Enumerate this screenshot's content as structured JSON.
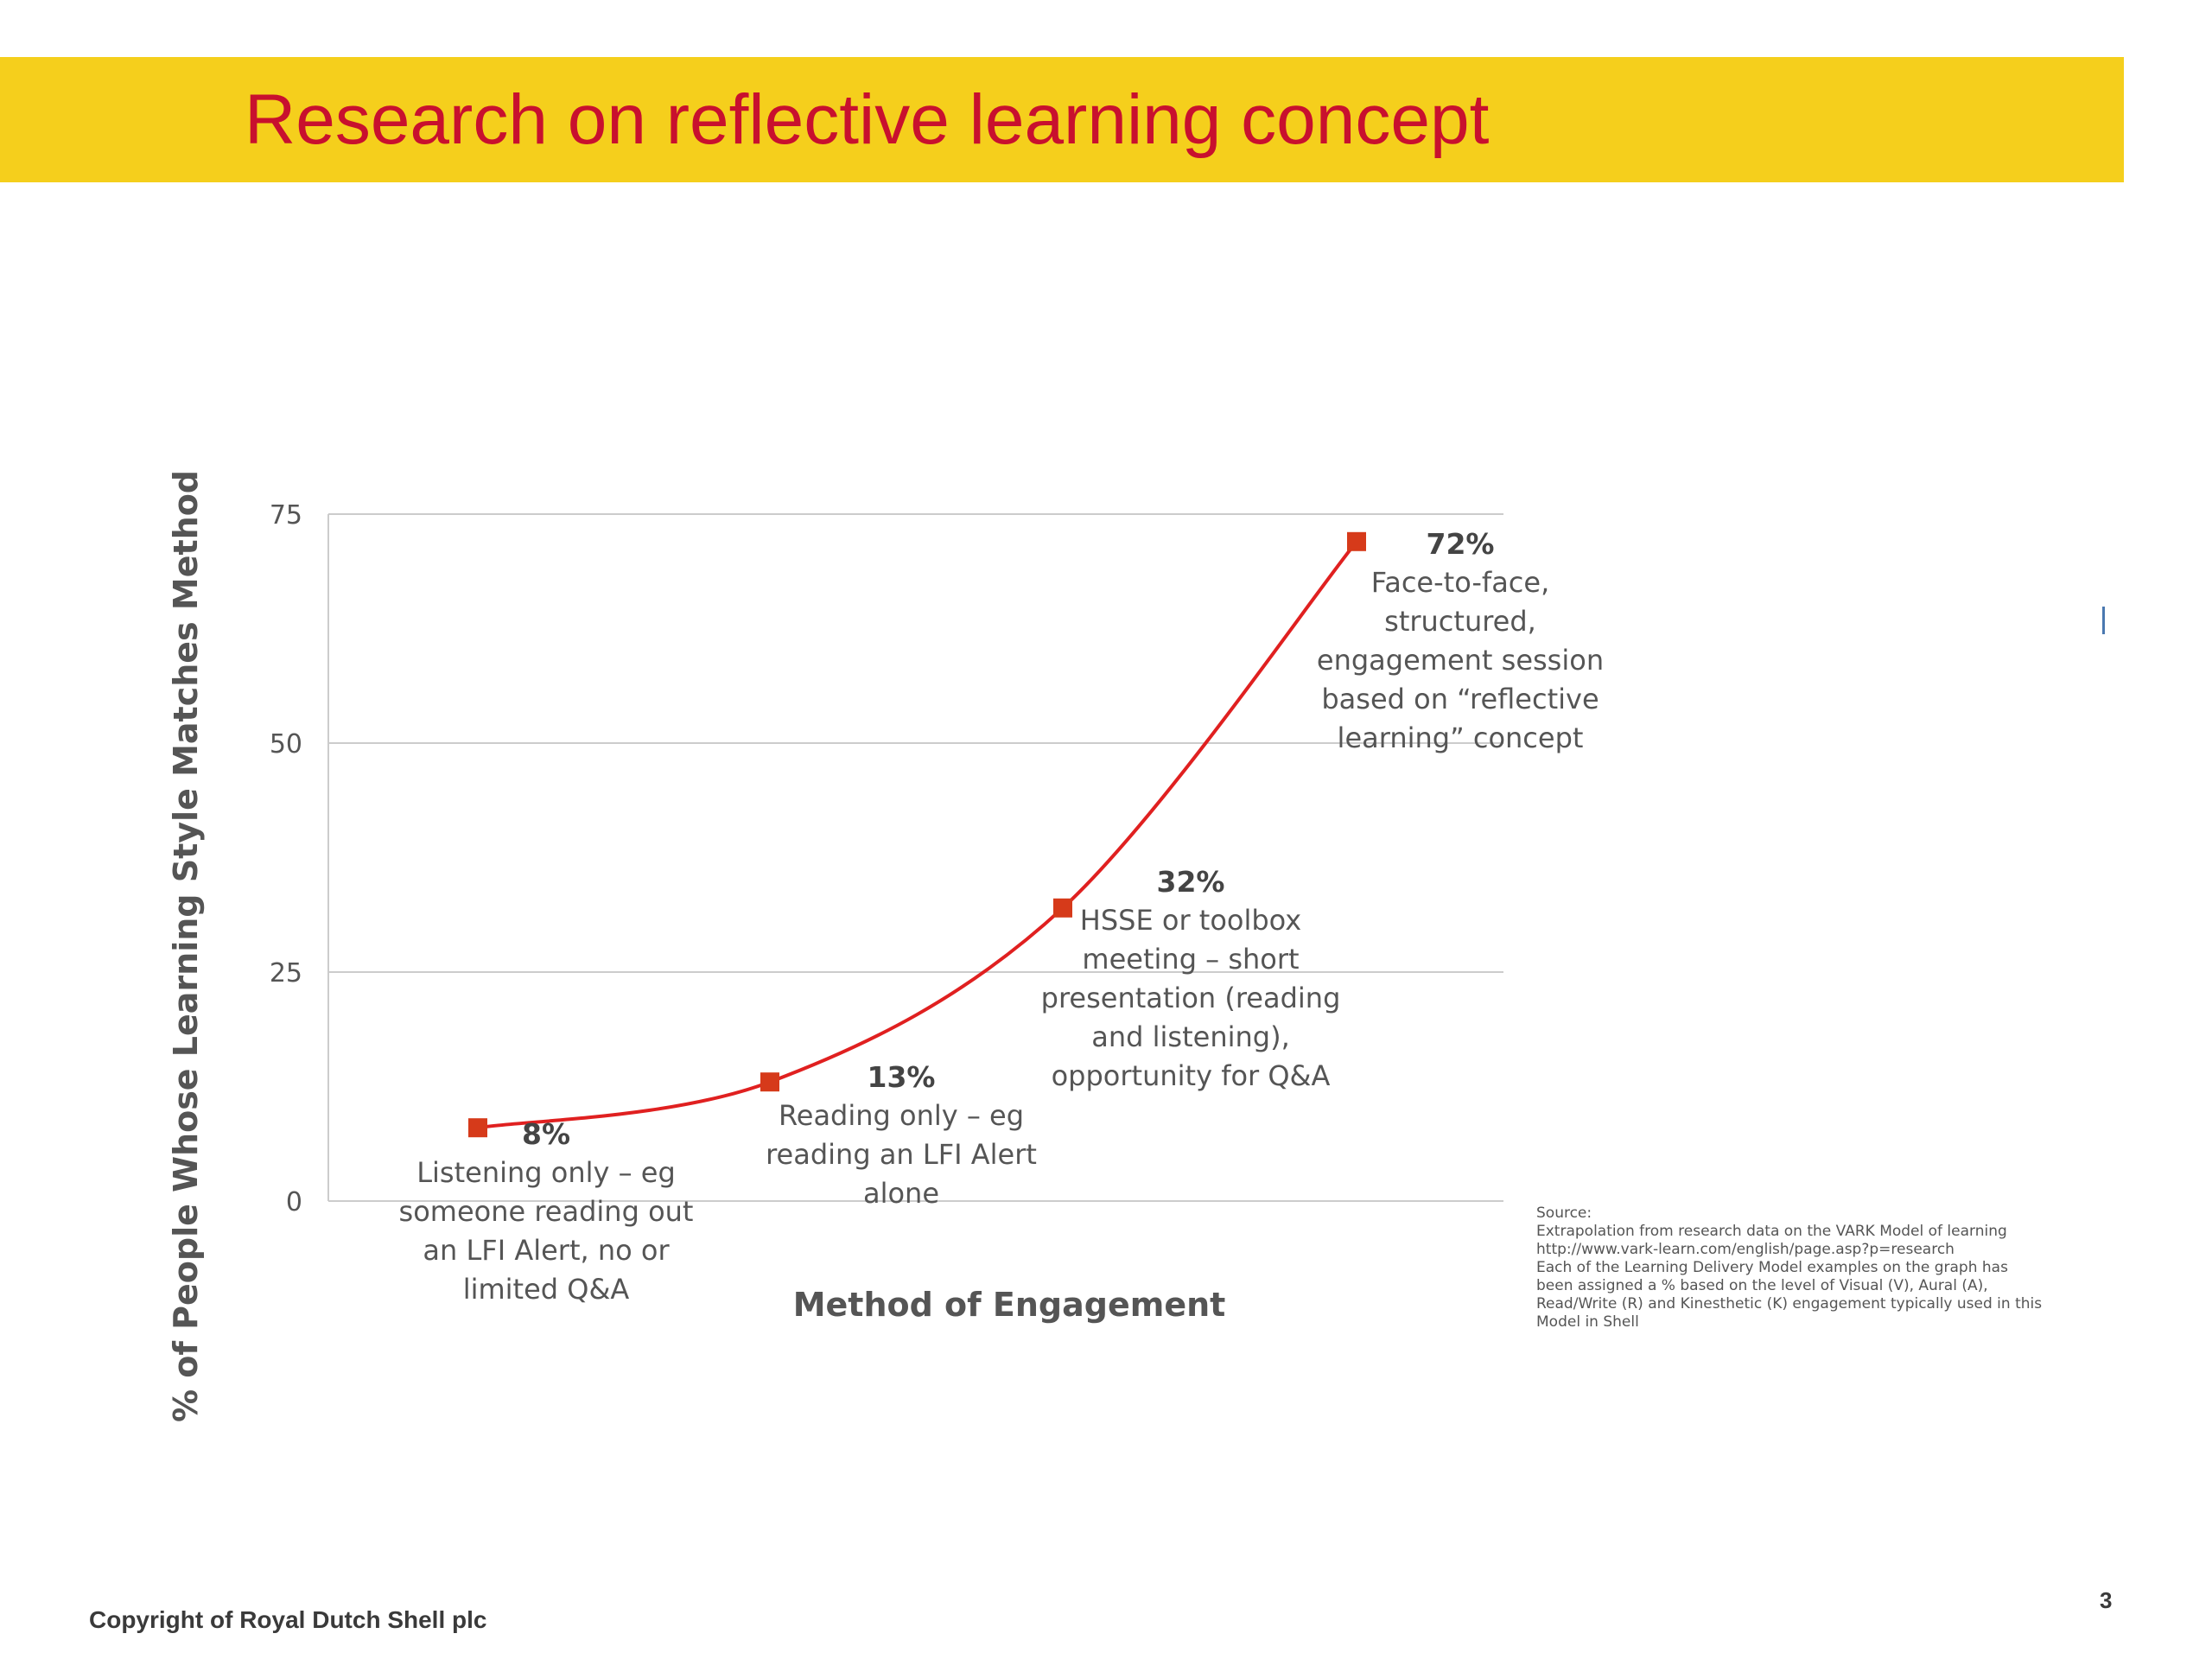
{
  "title": "Research on reflective learning concept",
  "colors": {
    "title_bar": "#f5cf1c",
    "title_text": "#c8102e",
    "line": "#e02020",
    "marker": "#d63a1a",
    "grid": "#cccccc"
  },
  "chart_data": {
    "type": "line",
    "xlabel": "Method of Engagement",
    "ylabel": "% of People Whose Learning Style Matches Method",
    "ylim": [
      0,
      75
    ],
    "yticks": [
      "0",
      "25",
      "50",
      "75"
    ],
    "grid": true,
    "series": [
      {
        "values": [
          8,
          13,
          32,
          72
        ],
        "labels": [
          "8%",
          "13%",
          "32%",
          "72%"
        ]
      }
    ],
    "annotations": [
      [
        "Listening only – eg",
        "someone reading out",
        "an LFI Alert, no or",
        "limited Q&A"
      ],
      [
        "Reading only – eg",
        "reading an LFI Alert",
        "alone"
      ],
      [
        "HSSE or toolbox",
        "meeting – short",
        "presentation (reading",
        "and listening),",
        "opportunity for Q&A"
      ],
      [
        "Face-to-face,",
        "structured,",
        "engagement session",
        "based on “reflective",
        "learning” concept"
      ]
    ]
  },
  "source": [
    "Source:",
    "Extrapolation from research data on the VARK Model of learning",
    "http://www.vark-learn.com/english/page.asp?p=research",
    "Each of the Learning Delivery Model examples on the graph has",
    "been assigned a % based on the level of Visual (V), Aural (A),",
    "Read/Write (R) and Kinesthetic (K) engagement typically used in this",
    "Model in Shell"
  ],
  "copyright": "Copyright of Royal Dutch Shell plc",
  "page_number": "3"
}
